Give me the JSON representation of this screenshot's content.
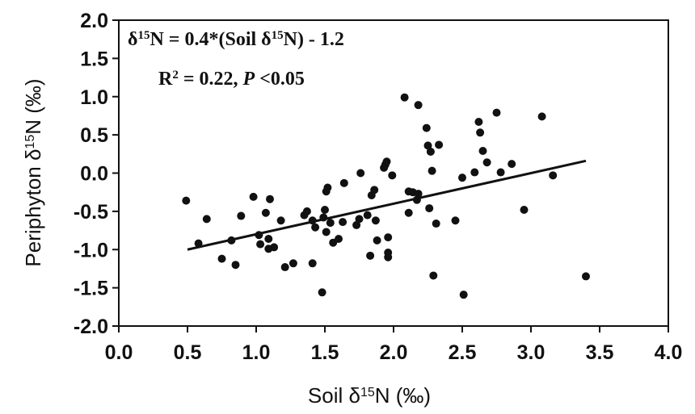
{
  "chart_data": {
    "type": "scatter",
    "xlabel": "Soil δ15N (‰)",
    "ylabel": "Periphyton δ15N (‰)",
    "xlim": [
      0.0,
      4.0
    ],
    "ylim": [
      -2.0,
      2.0
    ],
    "x_ticks": [
      "0.0",
      "0.5",
      "1.0",
      "1.5",
      "2.0",
      "2.5",
      "3.0",
      "3.5",
      "4.0"
    ],
    "y_ticks": [
      "2.0",
      "1.5",
      "1.0",
      "0.5",
      "0.0",
      "-0.5",
      "-1.0",
      "-1.5",
      "-2.0"
    ],
    "grid": false,
    "annotations": {
      "equation": "δ15N = 0.4*(Soil δ15N) - 1.2",
      "stats": "R2 = 0.22, P <0.05"
    },
    "regression": {
      "slope": 0.4,
      "intercept": -1.2,
      "x_range": [
        0.5,
        3.4
      ]
    },
    "points": [
      [
        0.49,
        -0.36
      ],
      [
        0.58,
        -0.92
      ],
      [
        0.64,
        -0.6
      ],
      [
        0.75,
        -1.12
      ],
      [
        0.82,
        -0.88
      ],
      [
        0.85,
        -1.2
      ],
      [
        0.89,
        -0.56
      ],
      [
        0.98,
        -0.31
      ],
      [
        1.02,
        -0.81
      ],
      [
        1.03,
        -0.93
      ],
      [
        1.07,
        -0.52
      ],
      [
        1.09,
        -0.86
      ],
      [
        1.09,
        -0.99
      ],
      [
        1.1,
        -0.34
      ],
      [
        1.13,
        -0.97
      ],
      [
        1.18,
        -0.62
      ],
      [
        1.21,
        -1.23
      ],
      [
        1.27,
        -1.18
      ],
      [
        1.35,
        -0.55
      ],
      [
        1.37,
        -0.5
      ],
      [
        1.41,
        -1.18
      ],
      [
        1.41,
        -0.62
      ],
      [
        1.43,
        -0.71
      ],
      [
        1.48,
        -1.56
      ],
      [
        1.49,
        -0.58
      ],
      [
        1.5,
        -0.48
      ],
      [
        1.51,
        -0.24
      ],
      [
        1.51,
        -0.77
      ],
      [
        1.52,
        -0.19
      ],
      [
        1.54,
        -0.65
      ],
      [
        1.56,
        -0.91
      ],
      [
        1.6,
        -0.86
      ],
      [
        1.63,
        -0.64
      ],
      [
        1.64,
        -0.13
      ],
      [
        1.73,
        -0.68
      ],
      [
        1.75,
        -0.6
      ],
      [
        1.76,
        0.0
      ],
      [
        1.81,
        -0.55
      ],
      [
        1.83,
        -1.08
      ],
      [
        1.84,
        -0.29
      ],
      [
        1.86,
        -0.22
      ],
      [
        1.87,
        -0.62
      ],
      [
        1.88,
        -0.88
      ],
      [
        1.93,
        0.07
      ],
      [
        1.94,
        0.11
      ],
      [
        1.95,
        0.15
      ],
      [
        1.96,
        -1.04
      ],
      [
        1.96,
        -0.84
      ],
      [
        1.96,
        -1.1
      ],
      [
        1.99,
        -0.03
      ],
      [
        2.08,
        0.99
      ],
      [
        2.11,
        -0.24
      ],
      [
        2.11,
        -0.52
      ],
      [
        2.14,
        -0.25
      ],
      [
        2.17,
        -0.35
      ],
      [
        2.18,
        0.89
      ],
      [
        2.18,
        -0.27
      ],
      [
        2.24,
        0.59
      ],
      [
        2.25,
        0.36
      ],
      [
        2.26,
        -0.46
      ],
      [
        2.27,
        0.28
      ],
      [
        2.28,
        0.03
      ],
      [
        2.29,
        -1.34
      ],
      [
        2.31,
        -0.66
      ],
      [
        2.33,
        0.37
      ],
      [
        2.45,
        -0.62
      ],
      [
        2.5,
        -0.06
      ],
      [
        2.51,
        -1.59
      ],
      [
        2.59,
        0.01
      ],
      [
        2.62,
        0.67
      ],
      [
        2.63,
        0.53
      ],
      [
        2.65,
        0.29
      ],
      [
        2.68,
        0.14
      ],
      [
        2.75,
        0.79
      ],
      [
        2.78,
        0.01
      ],
      [
        2.86,
        0.12
      ],
      [
        2.95,
        -0.48
      ],
      [
        3.08,
        0.74
      ],
      [
        3.16,
        -0.03
      ],
      [
        3.4,
        -1.35
      ]
    ]
  }
}
